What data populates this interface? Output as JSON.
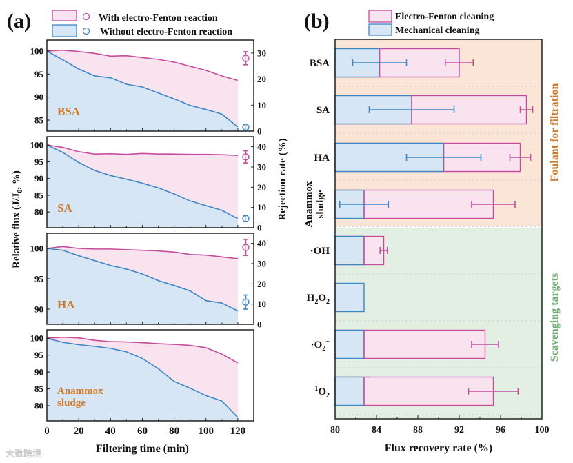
{
  "colors": {
    "with": "#c54b9c",
    "with_fill": "#f8e3ef",
    "without": "#3f86c4",
    "without_fill": "#d6e6f4",
    "label": "#d07a2e",
    "green": "#6fae6f",
    "orange_bg": "#fbe5d6",
    "green_bg": "#e3efe3"
  },
  "watermark": "大数跨境",
  "chart_data": [
    {
      "type": "area",
      "panel_label": "(a)",
      "legend": [
        "With electro-Fenton reaction",
        "Without electro-Fenton reaction"
      ],
      "ylabel": "Relative flux (J/J0, %)",
      "ylabel_right": "Rejection rate (%)",
      "xlabel": "Filtering time (min)",
      "x": [
        0,
        10,
        20,
        30,
        40,
        50,
        60,
        70,
        80,
        90,
        100,
        110,
        120
      ],
      "xticks": [
        0,
        20,
        40,
        60,
        80,
        100,
        120
      ],
      "xlim": [
        0,
        130
      ],
      "subplots": [
        {
          "name": "BSA",
          "ylim": [
            82.6,
            102.4
          ],
          "yticks": [
            85,
            90,
            95,
            100
          ],
          "y2lim": [
            0,
            35
          ],
          "y2ticks": [
            0,
            10,
            20,
            30
          ],
          "with": [
            100,
            100.2,
            99.9,
            99.5,
            98.9,
            99.0,
            98.6,
            98.2,
            97.6,
            96.7,
            95.8,
            94.6,
            93.6
          ],
          "without": [
            100,
            98.1,
            96.1,
            94.6,
            94.2,
            92.8,
            92.2,
            90.9,
            89.6,
            88.2,
            87.3,
            86.3,
            83.5
          ],
          "rejection_with": {
            "x": 125,
            "value": 28,
            "err": 2.5
          },
          "rejection_without": {
            "x": 125,
            "value": 1.5,
            "err": 0.8
          }
        },
        {
          "name": "SA",
          "ylim": [
            75.3,
            102.5
          ],
          "yticks": [
            80,
            85,
            90,
            95,
            100
          ],
          "y2lim": [
            0,
            45
          ],
          "y2ticks": [
            0,
            10,
            20,
            30,
            40
          ],
          "with": [
            100,
            99.3,
            98,
            97.3,
            97.4,
            97.2,
            97.5,
            97.3,
            97.3,
            97.2,
            97.2,
            97.1,
            96.9
          ],
          "without": [
            100,
            97.8,
            94.8,
            92.4,
            90.9,
            89.8,
            88.6,
            87.2,
            85.4,
            83.3,
            81.9,
            80.5,
            78
          ],
          "rejection_with": {
            "x": 125,
            "value": 35,
            "err": 3
          },
          "rejection_without": {
            "x": 125,
            "value": 4.5,
            "err": 1.5
          }
        },
        {
          "name": "HA",
          "ylim": [
            87.5,
            102.5
          ],
          "yticks": [
            90,
            95,
            100
          ],
          "y2lim": [
            0,
            45
          ],
          "y2ticks": [
            0,
            10,
            20,
            30,
            40
          ],
          "with": [
            100,
            100.3,
            100,
            99.9,
            99.9,
            99.8,
            99.7,
            99.6,
            99.4,
            99,
            98.9,
            98.6,
            98.3
          ],
          "without": [
            100,
            99.7,
            98.8,
            98,
            97.2,
            96.6,
            95.8,
            94.7,
            93.9,
            93,
            91.4,
            91,
            89.7
          ],
          "rejection_with": {
            "x": 125,
            "value": 38,
            "err": 4
          },
          "rejection_without": {
            "x": 125,
            "value": 11,
            "err": 3.5
          }
        },
        {
          "name": "Anammox sludge",
          "name_lines": [
            "Anammox",
            "sludge"
          ],
          "ylim": [
            75.5,
            102.5
          ],
          "yticks": [
            80,
            85,
            90,
            95,
            100
          ],
          "with": [
            100,
            100.3,
            100.1,
            99.4,
            99,
            98.9,
            98.7,
            98.4,
            98.2,
            97.9,
            97.2,
            95.3,
            92.7
          ],
          "without": [
            100,
            98.8,
            98.1,
            97.6,
            97,
            96,
            94,
            91,
            87.2,
            85.2,
            83,
            81.4,
            76.5
          ]
        }
      ]
    },
    {
      "type": "bar",
      "orientation": "horizontal",
      "panel_label": "(b)",
      "legend": [
        "Electro-Fenton cleaning",
        "Mechanical cleaning"
      ],
      "xlabel": "Flux recovery rate (%)",
      "xlim": [
        80,
        100
      ],
      "xticks": [
        80,
        84,
        88,
        92,
        96,
        100
      ],
      "group_labels": [
        "Foulant for filtration",
        "Scavenging targets"
      ],
      "categories": [
        "BSA",
        "SA",
        "HA",
        "Anammox sludge",
        "·OH",
        "H2O2",
        "·O2−",
        "1O2"
      ],
      "category_groups": [
        0,
        0,
        0,
        0,
        1,
        1,
        1,
        1
      ],
      "series": [
        {
          "name": "Mechanical cleaning",
          "values": [
            84.3,
            87.4,
            90.5,
            82.8,
            82.8,
            82.8,
            82.8,
            82.8
          ],
          "errors": [
            2.6,
            4.1,
            3.6,
            2.35,
            null,
            null,
            null,
            null
          ]
        },
        {
          "name": "Electro-Fenton cleaning",
          "values": [
            92.0,
            98.5,
            97.9,
            95.3,
            84.7,
            null,
            94.5,
            95.3
          ],
          "errors": [
            1.35,
            0.6,
            1.0,
            2.1,
            0.35,
            null,
            1.3,
            2.4
          ]
        }
      ]
    }
  ]
}
